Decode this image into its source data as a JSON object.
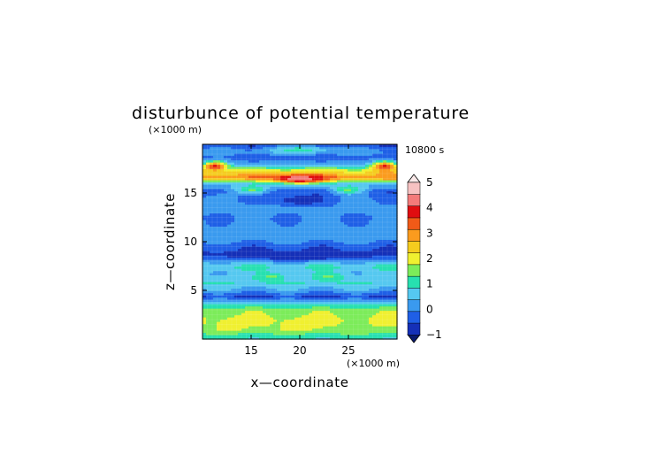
{
  "chart_data": {
    "type": "heatmap",
    "title": "disturbunce of potential temperature",
    "time_label": "10800 s",
    "xlabel": "x—coordinate",
    "ylabel": "z—coordinate",
    "x_unit": "(×1000 m)",
    "z_unit": "(×1000 m)",
    "xlim": [
      10,
      30
    ],
    "zlim": [
      0,
      20
    ],
    "x_ticks": [
      15,
      20,
      25
    ],
    "z_ticks": [
      5,
      10,
      15
    ],
    "grid": true,
    "colorbar": {
      "levels": [
        -1,
        -0.5,
        0,
        0.5,
        1,
        1.5,
        2,
        2.5,
        3,
        3.5,
        4,
        4.5,
        5
      ],
      "tick_labels": [
        "-1",
        "0",
        "1",
        "2",
        "3",
        "4",
        "5"
      ],
      "colors": [
        "#1530b8",
        "#1f5fe6",
        "#3a9aef",
        "#55c8f0",
        "#27e0b0",
        "#7cec5a",
        "#f0f030",
        "#f5cc1e",
        "#fb9b1e",
        "#f15a18",
        "#e00d10",
        "#f47a7a",
        "#f7c2c2"
      ],
      "extend": "both"
    },
    "z_profile": [
      {
        "z": 0.3,
        "value": 1.2
      },
      {
        "z": 1.0,
        "value": 1.9
      },
      {
        "z": 2.0,
        "value": 2.1
      },
      {
        "z": 3.0,
        "value": 1.8
      },
      {
        "z": 3.8,
        "value": 0.8
      },
      {
        "z": 4.4,
        "value": -0.6
      },
      {
        "z": 5.0,
        "value": 0.3
      },
      {
        "z": 5.8,
        "value": 1.0
      },
      {
        "z": 6.8,
        "value": 0.6
      },
      {
        "z": 7.5,
        "value": 1.1
      },
      {
        "z": 8.2,
        "value": 0.2
      },
      {
        "z": 8.8,
        "value": -0.6
      },
      {
        "z": 9.6,
        "value": -0.3
      },
      {
        "z": 10.5,
        "value": 0.35
      },
      {
        "z": 11.5,
        "value": 0.2
      },
      {
        "z": 12.5,
        "value": 0.0
      },
      {
        "z": 13.5,
        "value": 0.25
      },
      {
        "z": 14.5,
        "value": 0.0
      },
      {
        "z": 15.2,
        "value": -0.4
      },
      {
        "z": 16.0,
        "value": 0.6
      },
      {
        "z": 16.6,
        "value": 3.4
      },
      {
        "z": 17.3,
        "value": 2.4
      },
      {
        "z": 18.0,
        "value": 0.3
      },
      {
        "z": 18.7,
        "value": -0.3
      },
      {
        "z": 19.3,
        "value": 0.3
      },
      {
        "z": 20.0,
        "value": -0.5
      }
    ],
    "features": [
      {
        "x": 20.0,
        "z": 16.5,
        "value": 5.0,
        "dx": 2.6,
        "dz": 0.45
      },
      {
        "x": 11.3,
        "z": 17.8,
        "value": 4.2,
        "dx": 1.2,
        "dz": 0.5
      },
      {
        "x": 28.7,
        "z": 17.8,
        "value": 4.2,
        "dx": 1.2,
        "dz": 0.5
      },
      {
        "x": 15.0,
        "z": 15.4,
        "value": 1.6,
        "dx": 1.8,
        "dz": 0.5
      },
      {
        "x": 25.0,
        "z": 15.4,
        "value": 1.6,
        "dx": 1.8,
        "dz": 0.5
      },
      {
        "x": 20.0,
        "z": 19.5,
        "value": 1.2,
        "dx": 3.0,
        "dz": 0.4
      },
      {
        "x": 20.0,
        "z": 14.3,
        "value": -0.8,
        "dx": 3.0,
        "dz": 0.6
      },
      {
        "x": 17.0,
        "z": 6.5,
        "value": 1.6,
        "dx": 1.5,
        "dz": 0.4
      },
      {
        "x": 23.0,
        "z": 6.5,
        "value": 1.6,
        "dx": 1.5,
        "dz": 0.4
      },
      {
        "x": 20.0,
        "z": 8.6,
        "value": -0.9,
        "dx": 8.0,
        "dz": 0.5
      },
      {
        "x": 20.0,
        "z": 1.5,
        "value": 2.4,
        "dx": 1.5,
        "dz": 0.6
      },
      {
        "x": 13.0,
        "z": 1.5,
        "value": 2.4,
        "dx": 1.2,
        "dz": 0.6
      }
    ]
  }
}
